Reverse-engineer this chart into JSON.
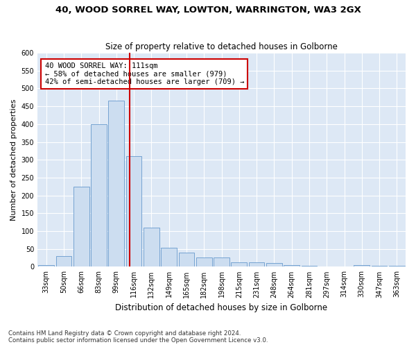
{
  "title1": "40, WOOD SORREL WAY, LOWTON, WARRINGTON, WA3 2GX",
  "title2": "Size of property relative to detached houses in Golborne",
  "xlabel": "Distribution of detached houses by size in Golborne",
  "ylabel": "Number of detached properties",
  "categories": [
    "33sqm",
    "50sqm",
    "66sqm",
    "83sqm",
    "99sqm",
    "116sqm",
    "132sqm",
    "149sqm",
    "165sqm",
    "182sqm",
    "198sqm",
    "215sqm",
    "231sqm",
    "248sqm",
    "264sqm",
    "281sqm",
    "297sqm",
    "314sqm",
    "330sqm",
    "347sqm",
    "363sqm"
  ],
  "values": [
    5,
    30,
    225,
    400,
    465,
    310,
    110,
    53,
    40,
    26,
    26,
    12,
    12,
    10,
    4,
    2,
    1,
    0,
    5,
    2,
    2
  ],
  "bar_color": "#ccddf0",
  "bar_edge_color": "#6699cc",
  "bg_color": "#dde8f5",
  "grid_color": "#ffffff",
  "vline_x": 4.75,
  "vline_color": "#cc0000",
  "annotation_text": "40 WOOD SORREL WAY: 111sqm\n← 58% of detached houses are smaller (979)\n42% of semi-detached houses are larger (709) →",
  "annotation_box_color": "#ffffff",
  "annotation_edge_color": "#cc0000",
  "footnote1": "Contains HM Land Registry data © Crown copyright and database right 2024.",
  "footnote2": "Contains public sector information licensed under the Open Government Licence v3.0.",
  "ylim": [
    0,
    600
  ],
  "yticks": [
    0,
    50,
    100,
    150,
    200,
    250,
    300,
    350,
    400,
    450,
    500,
    550,
    600
  ],
  "fig_bg": "#ffffff"
}
